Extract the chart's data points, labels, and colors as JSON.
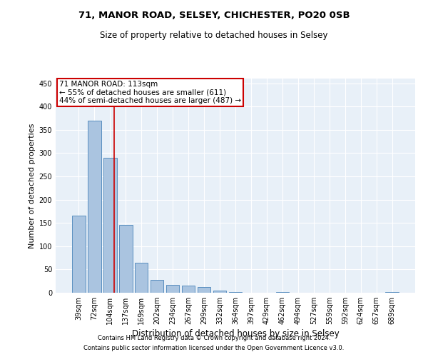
{
  "title1": "71, MANOR ROAD, SELSEY, CHICHESTER, PO20 0SB",
  "title2": "Size of property relative to detached houses in Selsey",
  "xlabel": "Distribution of detached houses by size in Selsey",
  "ylabel": "Number of detached properties",
  "bar_categories": [
    "39sqm",
    "72sqm",
    "104sqm",
    "137sqm",
    "169sqm",
    "202sqm",
    "234sqm",
    "267sqm",
    "299sqm",
    "332sqm",
    "364sqm",
    "397sqm",
    "429sqm",
    "462sqm",
    "494sqm",
    "527sqm",
    "559sqm",
    "592sqm",
    "624sqm",
    "657sqm",
    "689sqm"
  ],
  "bar_values": [
    165,
    370,
    290,
    145,
    65,
    28,
    17,
    15,
    12,
    5,
    1,
    0,
    0,
    1,
    0,
    0,
    0,
    0,
    0,
    0,
    1
  ],
  "bar_color": "#aac4e0",
  "bar_edge_color": "#5a8fc0",
  "vline_color": "#cc0000",
  "property_label": "71 MANOR ROAD: 113sqm",
  "annotation_line1": "← 55% of detached houses are smaller (611)",
  "annotation_line2": "44% of semi-detached houses are larger (487) →",
  "footnote1": "Contains HM Land Registry data © Crown copyright and database right 2024.",
  "footnote2": "Contains public sector information licensed under the Open Government Licence v3.0.",
  "background_color": "#ffffff",
  "plot_bg_color": "#e8f0f8",
  "grid_color": "#ffffff",
  "ylim": [
    0,
    460
  ],
  "yticks": [
    0,
    50,
    100,
    150,
    200,
    250,
    300,
    350,
    400,
    450
  ],
  "title1_fontsize": 9.5,
  "title2_fontsize": 8.5,
  "xlabel_fontsize": 8.5,
  "ylabel_fontsize": 8.0,
  "tick_fontsize": 7.0,
  "footnote_fontsize": 6.0,
  "annot_fontsize": 7.5,
  "vline_x": 2.27
}
